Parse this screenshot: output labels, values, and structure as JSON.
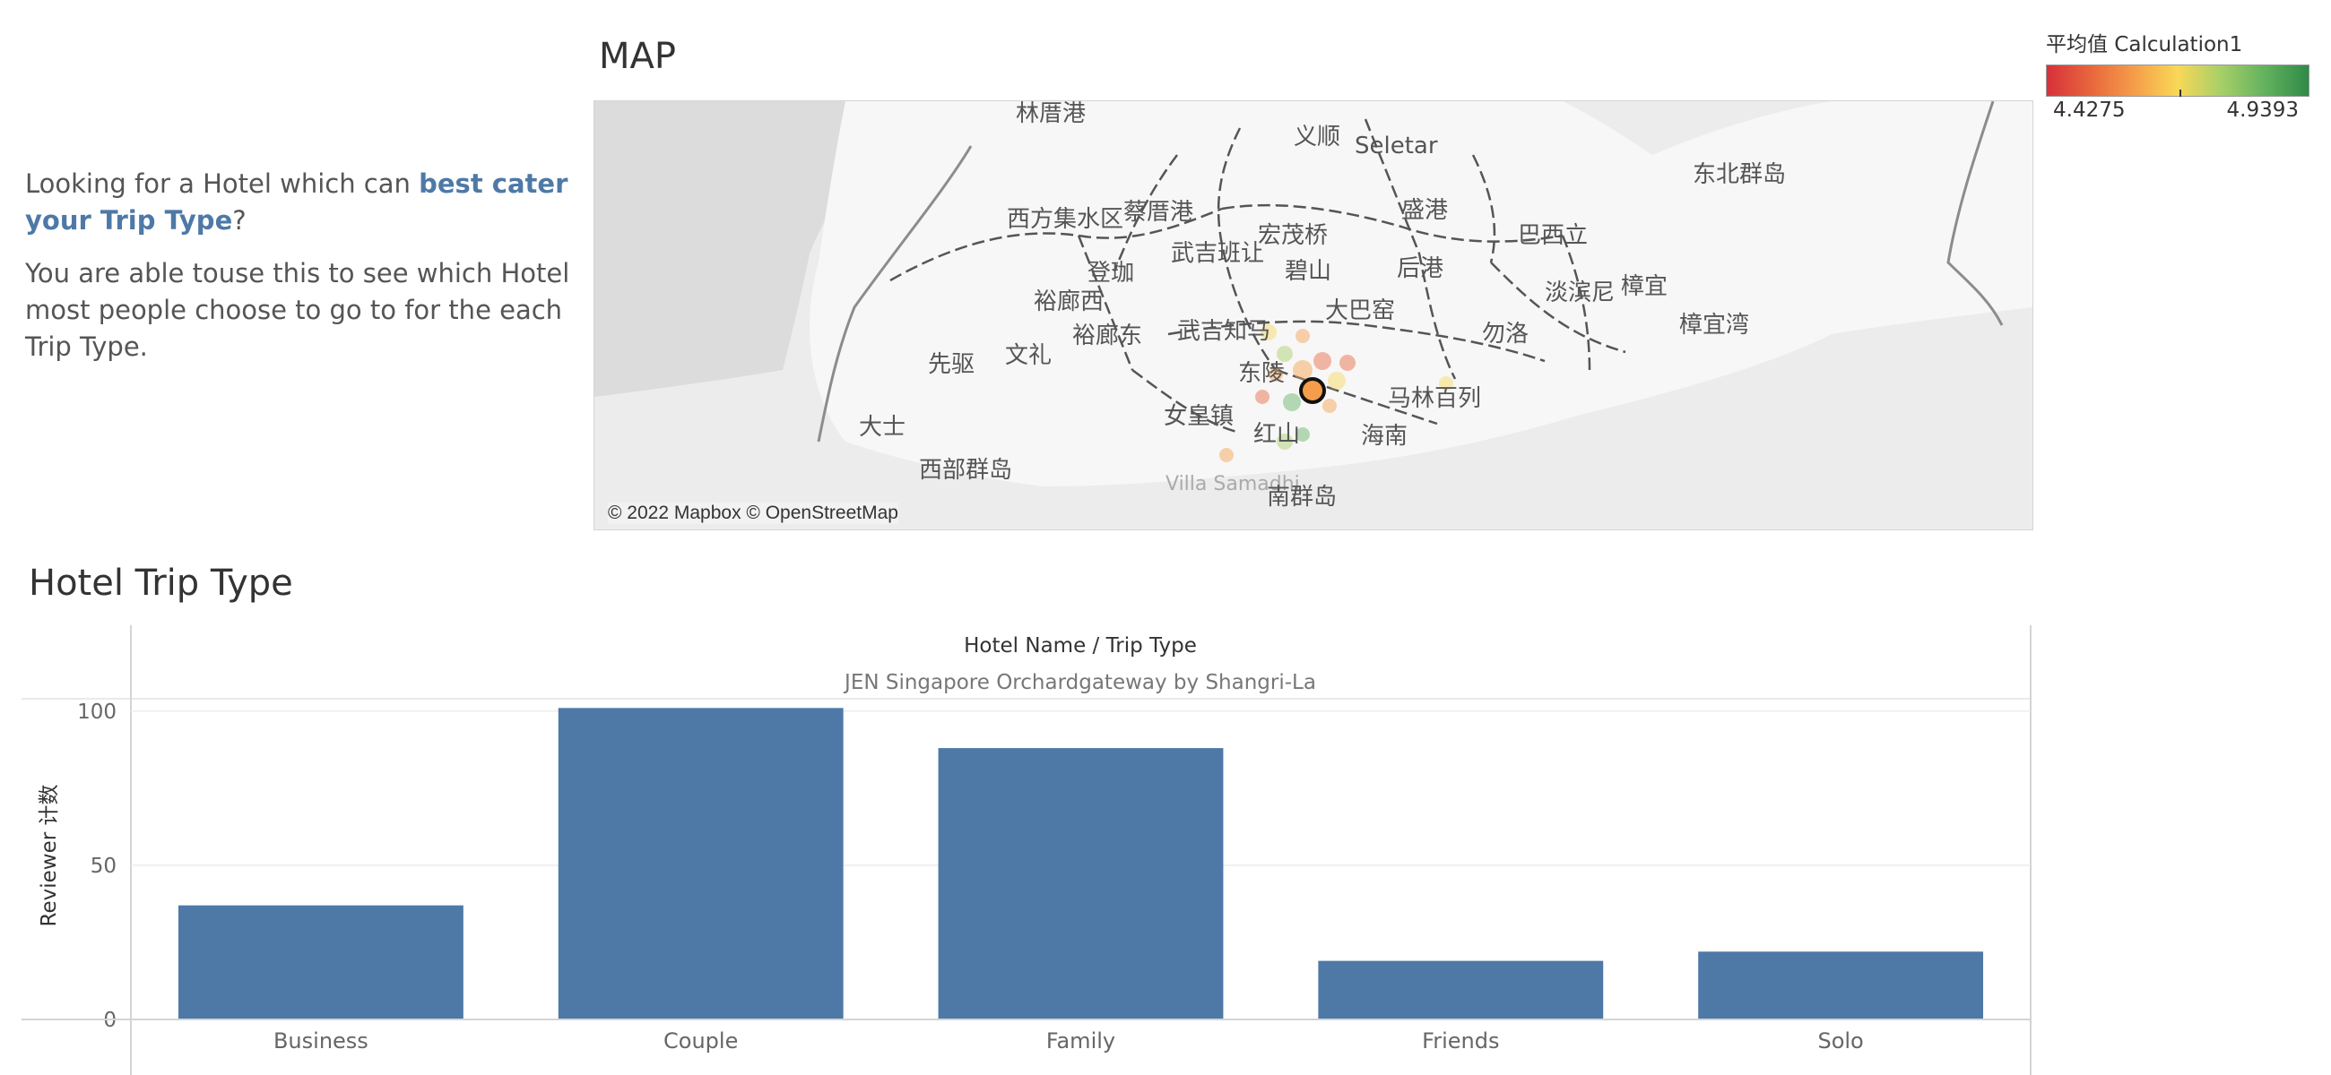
{
  "intro": {
    "line1_prefix": "Looking for a Hotel which can ",
    "line1_highlight": "best cater your Trip Type",
    "line1_suffix": "?",
    "line2": " You are able touse this to see which Hotel most people choose to go to for the each Trip Type."
  },
  "map": {
    "title": "MAP",
    "attribution": "© 2022 Mapbox © OpenStreetMap",
    "place_labels": [
      "林厝港",
      "义顺",
      "Seletar",
      "东北群岛",
      "西方集水区",
      "蔡厝港",
      "盛港",
      "宏茂桥",
      "巴西立",
      "武吉班让",
      "登珈",
      "碧山",
      "后港",
      "淡滨尼",
      "樟宜",
      "裕廊西",
      "大巴窑",
      "樟宜湾",
      "裕廊东",
      "武吉知马",
      "勿洛",
      "先驱",
      "文礼",
      "东陵",
      "马林百列",
      "大士",
      "女皇镇",
      "红山",
      "海南",
      "西部群岛",
      "Villa Samadhi",
      "南群岛"
    ],
    "selected_marker_color": "#f59d4a"
  },
  "legend": {
    "title": "平均值 Calculation1",
    "min_label": "4.4275",
    "max_label": "4.9393",
    "colors": [
      "#d7303b",
      "#f59d4a",
      "#f9d857",
      "#63b25f",
      "#2f8a47"
    ]
  },
  "chart": {
    "title": "Hotel Trip Type"
  },
  "chart_data": {
    "type": "bar",
    "header_title": "Hotel Name  /  Trip Type",
    "header_subtitle": "JEN Singapore Orchardgateway by Shangri-La",
    "ylabel": "Reviewer 计数",
    "categories": [
      "Business",
      "Couple",
      "Family",
      "Friends",
      "Solo"
    ],
    "values": [
      37,
      101,
      88,
      19,
      22
    ],
    "yticks": [
      0,
      50,
      100
    ],
    "ylim": [
      0,
      104
    ],
    "grid": true,
    "bar_color": "#4e79a7"
  }
}
